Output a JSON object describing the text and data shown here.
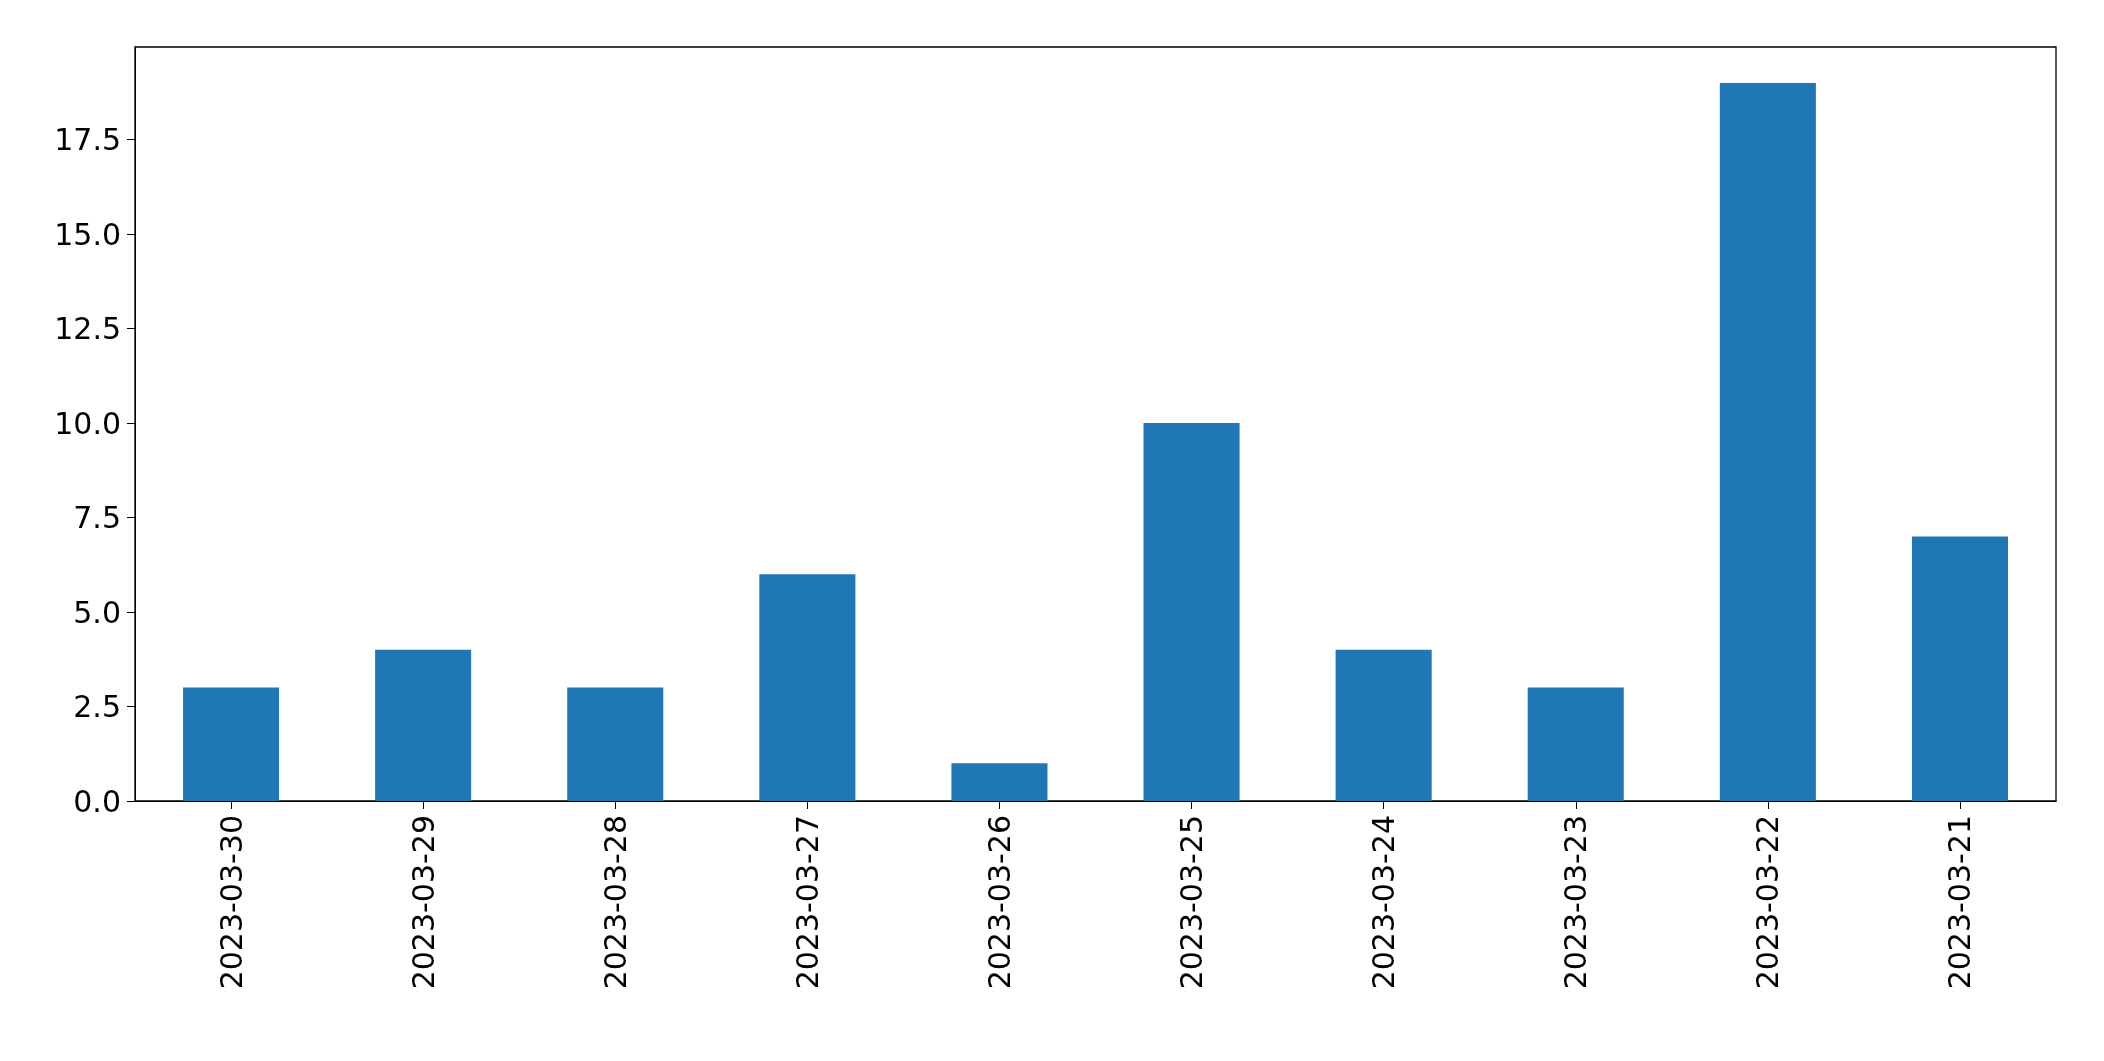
{
  "chart_data": {
    "type": "bar",
    "categories": [
      "2023-03-30",
      "2023-03-29",
      "2023-03-28",
      "2023-03-27",
      "2023-03-26",
      "2023-03-25",
      "2023-03-24",
      "2023-03-23",
      "2023-03-22",
      "2023-03-21"
    ],
    "values": [
      3,
      4,
      3,
      6,
      1,
      10,
      4,
      3,
      19,
      7
    ],
    "color": "#1f77b4",
    "ylim": [
      0,
      19.95
    ],
    "yticks": [
      {
        "value": 0,
        "label": "0.0"
      },
      {
        "value": 2.5,
        "label": "2.5"
      },
      {
        "value": 5,
        "label": "5.0"
      },
      {
        "value": 7.5,
        "label": "7.5"
      },
      {
        "value": 10,
        "label": "10.0"
      },
      {
        "value": 12.5,
        "label": "12.5"
      },
      {
        "value": 15,
        "label": "15.0"
      },
      {
        "value": 17.5,
        "label": "17.5"
      }
    ],
    "grid": false
  }
}
